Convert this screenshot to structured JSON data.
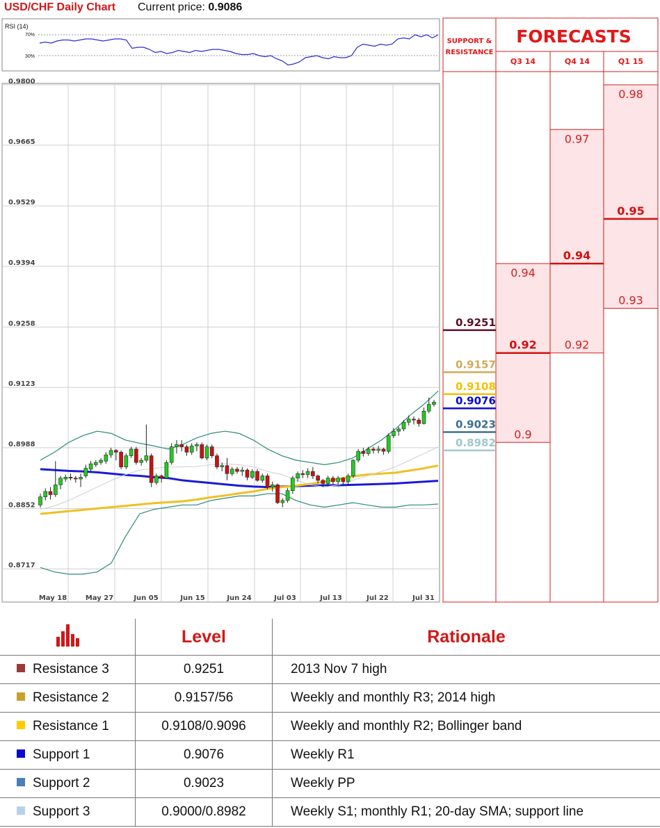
{
  "header": {
    "title": "USD/CHF Daily Chart",
    "price_label": "Current price:",
    "price_value": "0.9086"
  },
  "rsi": {
    "label": "RSI (14)",
    "levels": [
      "70%",
      "30%"
    ],
    "values": [
      62,
      63,
      62,
      64,
      65,
      65,
      64,
      65,
      66,
      66,
      65,
      64,
      65,
      66,
      66,
      65,
      57,
      58,
      58,
      56,
      53,
      54,
      52,
      53,
      55,
      54,
      53,
      55,
      54,
      55,
      56,
      56,
      55,
      54,
      52,
      51,
      51,
      52,
      50,
      49,
      50,
      47,
      45,
      41,
      42,
      44,
      48,
      49,
      50,
      48,
      47,
      49,
      48,
      48,
      50,
      58,
      61,
      60,
      59,
      61,
      60,
      61,
      66,
      67,
      66,
      70,
      68,
      70,
      67,
      70
    ]
  },
  "chart_data": {
    "type": "candlestick",
    "title": "USD/CHF Daily Chart",
    "ylim": [
      0.8652,
      0.98
    ],
    "y_ticks": [
      "0.9800",
      "0.9665",
      "0.9529",
      "0.9394",
      "0.9258",
      "0.9123",
      "0.8988",
      "0.8852",
      "0.8717"
    ],
    "x_ticks": [
      "May 18",
      "May 27",
      "Jun 05",
      "Jun 15",
      "Jun 24",
      "Jul 03",
      "Jul 13",
      "Jul 22",
      "Jul 31"
    ],
    "candles": [
      [
        0.886,
        0.8878,
        0.8854,
        0.8885
      ],
      [
        0.8878,
        0.889,
        0.887,
        0.8897
      ],
      [
        0.889,
        0.8883,
        0.8872,
        0.89
      ],
      [
        0.8883,
        0.8905,
        0.8878,
        0.8958
      ],
      [
        0.8905,
        0.892,
        0.8895,
        0.8925
      ],
      [
        0.8918,
        0.8922,
        0.8912,
        0.8928
      ],
      [
        0.8922,
        0.892,
        0.8915,
        0.893
      ],
      [
        0.892,
        0.8918,
        0.891,
        0.8925
      ],
      [
        0.8918,
        0.8922,
        0.89,
        0.893
      ],
      [
        0.8925,
        0.8942,
        0.892,
        0.895
      ],
      [
        0.894,
        0.8952,
        0.8935,
        0.8958
      ],
      [
        0.895,
        0.8955,
        0.8945,
        0.896
      ],
      [
        0.8955,
        0.896,
        0.895,
        0.8965
      ],
      [
        0.8958,
        0.8972,
        0.8952,
        0.8978
      ],
      [
        0.8972,
        0.8982,
        0.8965,
        0.8988
      ],
      [
        0.8982,
        0.8978,
        0.896,
        0.8985
      ],
      [
        0.8978,
        0.8945,
        0.894,
        0.8982
      ],
      [
        0.8945,
        0.897,
        0.894,
        0.8975
      ],
      [
        0.897,
        0.8985,
        0.8965,
        0.899
      ],
      [
        0.8985,
        0.8955,
        0.895,
        0.899
      ],
      [
        0.8955,
        0.896,
        0.8948,
        0.8965
      ],
      [
        0.896,
        0.897,
        0.8955,
        0.904
      ],
      [
        0.897,
        0.891,
        0.89,
        0.8975
      ],
      [
        0.891,
        0.8925,
        0.8905,
        0.893
      ],
      [
        0.8925,
        0.892,
        0.891,
        0.8928
      ],
      [
        0.892,
        0.8955,
        0.8918,
        0.896
      ],
      [
        0.8955,
        0.899,
        0.895,
        0.8998
      ],
      [
        0.899,
        0.8995,
        0.8975,
        0.9005
      ],
      [
        0.8995,
        0.899,
        0.898,
        0.9005
      ],
      [
        0.899,
        0.8978,
        0.897,
        0.8995
      ],
      [
        0.8978,
        0.8992,
        0.8972,
        0.8998
      ],
      [
        0.8992,
        0.8995,
        0.898,
        0.9
      ],
      [
        0.8995,
        0.8965,
        0.8962,
        0.9
      ],
      [
        0.8965,
        0.899,
        0.896,
        0.8995
      ],
      [
        0.899,
        0.897,
        0.8965,
        0.8995
      ],
      [
        0.897,
        0.8945,
        0.894,
        0.8975
      ],
      [
        0.8945,
        0.8948,
        0.8935,
        0.8955
      ],
      [
        0.8948,
        0.893,
        0.8915,
        0.8965
      ],
      [
        0.893,
        0.894,
        0.8925,
        0.8945
      ],
      [
        0.894,
        0.8935,
        0.893,
        0.8945
      ],
      [
        0.8935,
        0.8938,
        0.8925,
        0.8945
      ],
      [
        0.8938,
        0.8922,
        0.8915,
        0.8942
      ],
      [
        0.8922,
        0.8935,
        0.8918,
        0.894
      ],
      [
        0.8935,
        0.8915,
        0.8912,
        0.894
      ],
      [
        0.8915,
        0.8925,
        0.891,
        0.893
      ],
      [
        0.8925,
        0.89,
        0.8895,
        0.893
      ],
      [
        0.89,
        0.8905,
        0.889,
        0.8912
      ],
      [
        0.8905,
        0.8865,
        0.8862,
        0.8908
      ],
      [
        0.8865,
        0.887,
        0.8855,
        0.8875
      ],
      [
        0.887,
        0.8892,
        0.8865,
        0.8898
      ],
      [
        0.8892,
        0.892,
        0.8885,
        0.8925
      ],
      [
        0.892,
        0.893,
        0.8912,
        0.8935
      ],
      [
        0.893,
        0.8928,
        0.892,
        0.8938
      ],
      [
        0.8928,
        0.8935,
        0.892,
        0.8942
      ],
      [
        0.8935,
        0.8925,
        0.8918,
        0.8945
      ],
      [
        0.8925,
        0.8915,
        0.8908,
        0.8928
      ],
      [
        0.8915,
        0.8908,
        0.89,
        0.8918
      ],
      [
        0.8908,
        0.892,
        0.8902,
        0.8925
      ],
      [
        0.892,
        0.8912,
        0.8905,
        0.8925
      ],
      [
        0.8912,
        0.892,
        0.8905,
        0.8925
      ],
      [
        0.892,
        0.8912,
        0.8905,
        0.8922
      ],
      [
        0.8912,
        0.8925,
        0.8905,
        0.893
      ],
      [
        0.8925,
        0.896,
        0.892,
        0.8962
      ],
      [
        0.896,
        0.898,
        0.8955,
        0.8985
      ],
      [
        0.898,
        0.8975,
        0.8968,
        0.8988
      ],
      [
        0.8975,
        0.8985,
        0.897,
        0.899
      ],
      [
        0.8985,
        0.8982,
        0.8975,
        0.899
      ],
      [
        0.8982,
        0.8985,
        0.8975,
        0.8992
      ],
      [
        0.8985,
        0.898,
        0.8972,
        0.8988
      ],
      [
        0.898,
        0.9015,
        0.8975,
        0.902
      ],
      [
        0.9015,
        0.9025,
        0.901,
        0.9032
      ],
      [
        0.9025,
        0.903,
        0.9015,
        0.9035
      ],
      [
        0.903,
        0.9045,
        0.9025,
        0.905
      ],
      [
        0.9045,
        0.9052,
        0.9038,
        0.906
      ],
      [
        0.9052,
        0.905,
        0.904,
        0.9058
      ],
      [
        0.905,
        0.9042,
        0.9035,
        0.9055
      ],
      [
        0.9042,
        0.907,
        0.904,
        0.9078
      ],
      [
        0.907,
        0.9085,
        0.9065,
        0.91
      ],
      [
        0.9085,
        0.909,
        0.908,
        0.9095
      ]
    ],
    "series": [
      {
        "name": "",
        "color": "#1a1ad8",
        "values": [
          0.894,
          0.8938,
          0.8936,
          0.8935,
          0.8933,
          0.893,
          0.8927,
          0.8925,
          0.8922,
          0.892,
          0.8915,
          0.8912,
          0.8909,
          0.8906,
          0.8903,
          0.8901,
          0.89,
          0.8901,
          0.8902,
          0.8903,
          0.8904,
          0.8904,
          0.8905,
          0.8906,
          0.8907,
          0.8908,
          0.891,
          0.8912,
          0.8914
        ]
      },
      {
        "name": "",
        "color": "#f0c020",
        "values": [
          0.884,
          0.8843,
          0.8846,
          0.8849,
          0.8852,
          0.8855,
          0.8858,
          0.8861,
          0.8864,
          0.8866,
          0.8868,
          0.8872,
          0.8877,
          0.8881,
          0.8886,
          0.889,
          0.8896,
          0.89,
          0.8903,
          0.8907,
          0.8912,
          0.8918,
          0.8924,
          0.8928,
          0.893,
          0.8932,
          0.8937,
          0.8942,
          0.8948
        ]
      },
      {
        "name": "",
        "color": "#2a8a7a",
        "values": [
          0.896,
          0.8978,
          0.9,
          0.9015,
          0.9025,
          0.902,
          0.9005,
          0.8998,
          0.8992,
          0.8985,
          0.8995,
          0.901,
          0.902,
          0.9025,
          0.902,
          0.9005,
          0.8985,
          0.897,
          0.896,
          0.8955,
          0.895,
          0.8955,
          0.8965,
          0.8985,
          0.9005,
          0.903,
          0.906,
          0.9085,
          0.9115
        ]
      },
      {
        "name": "",
        "color": "#2a8a7a",
        "values": [
          0.872,
          0.871,
          0.8705,
          0.8705,
          0.871,
          0.873,
          0.879,
          0.884,
          0.885,
          0.8855,
          0.886,
          0.886,
          0.887,
          0.8875,
          0.888,
          0.888,
          0.8885,
          0.8885,
          0.887,
          0.886,
          0.8855,
          0.886,
          0.8865,
          0.886,
          0.8855,
          0.8855,
          0.886,
          0.886,
          0.8862
        ]
      },
      {
        "name": "",
        "color": "#cfcfcf",
        "values": [
          0.885,
          0.8858,
          0.887,
          0.8885,
          0.89,
          0.8915,
          0.8928,
          0.8938,
          0.8942,
          0.8945,
          0.8945,
          0.8946,
          0.895,
          0.8952,
          0.895,
          0.8945,
          0.8935,
          0.8928,
          0.8915,
          0.8905,
          0.89,
          0.8905,
          0.8915,
          0.8925,
          0.8935,
          0.8945,
          0.896,
          0.8975,
          0.899
        ]
      }
    ],
    "support_resistance": [
      {
        "label": "0.9251",
        "value": 0.9251,
        "color": "#5a0f2a"
      },
      {
        "label": "0.9157",
        "value": 0.9157,
        "color": "#d4a857"
      },
      {
        "label": "0.9108",
        "value": 0.9108,
        "color": "#f5c000"
      },
      {
        "label": "0.9076",
        "value": 0.9076,
        "color": "#0a0ad0"
      },
      {
        "label": "0.9023",
        "value": 0.9023,
        "color": "#3a7090"
      },
      {
        "label": "0.8982",
        "value": 0.8982,
        "color": "#9ec8cf"
      }
    ]
  },
  "forecasts": {
    "title": "FORECASTS",
    "sr_label": "SUPPORT & RESISTANCE",
    "columns": [
      {
        "label": "Q3 14",
        "high": 0.94,
        "low": 0.9,
        "mid": 0.92,
        "high_label": "0.94",
        "mid_label": "0.92",
        "low_label": "0.9"
      },
      {
        "label": "Q4 14",
        "high": 0.97,
        "low": 0.92,
        "mid": 0.94,
        "high_label": "0.97",
        "mid_label": "0.94",
        "low_label": "0.92"
      },
      {
        "label": "Q1 15",
        "high": 0.98,
        "low": 0.93,
        "mid": 0.95,
        "high_label": "0.98",
        "mid_label": "0.95",
        "low_label": "0.93"
      }
    ]
  },
  "table": {
    "headers": {
      "level": "Level",
      "rationale": "Rationale"
    },
    "rows": [
      {
        "name": "Resistance 3",
        "level": "0.9251",
        "rationale": "2013 Nov 7 high",
        "color": "#9b3a3a"
      },
      {
        "name": "Resistance 2",
        "level": "0.9157/56",
        "rationale": "Weekly and monthly R3; 2014 high",
        "color": "#c9a02a"
      },
      {
        "name": "Resistance 1",
        "level": "0.9108/0.9096",
        "rationale": "Weekly and monthly R2; Bollinger band",
        "color": "#ffcc00"
      },
      {
        "name": "Support 1",
        "level": "0.9076",
        "rationale": "Weekly R1",
        "color": "#0a0ad0"
      },
      {
        "name": "Support 2",
        "level": "0.9023",
        "rationale": "Weekly PP",
        "color": "#4a7fb8"
      },
      {
        "name": "Support 3",
        "level": "0.9000/0.8982",
        "rationale": "Weekly S1; monthly R1; 20-day SMA; support line",
        "color": "#b8d0e8"
      }
    ]
  }
}
